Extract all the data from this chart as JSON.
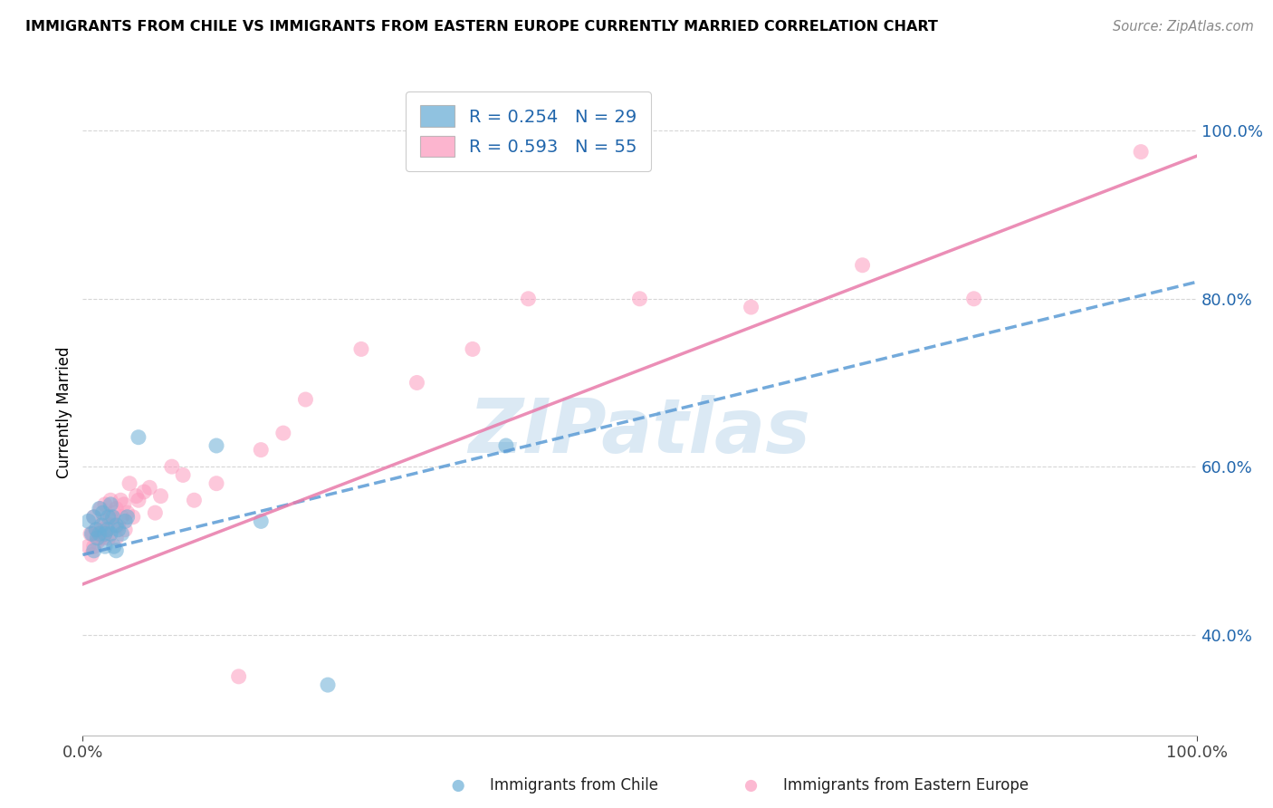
{
  "title": "IMMIGRANTS FROM CHILE VS IMMIGRANTS FROM EASTERN EUROPE CURRENTLY MARRIED CORRELATION CHART",
  "source": "Source: ZipAtlas.com",
  "ylabel": "Currently Married",
  "legend_label1": "R = 0.254   N = 29",
  "legend_label2": "R = 0.593   N = 55",
  "footer_label1": "Immigrants from Chile",
  "footer_label2": "Immigrants from Eastern Europe",
  "color_blue": "#6baed6",
  "color_pink": "#fc9cbf",
  "color_blue_line": "#5b9bd5",
  "color_pink_line": "#e87aaa",
  "color_text_blue": "#2166ac",
  "watermark_color": "#b8d4ea",
  "xlim": [
    0.0,
    1.0
  ],
  "ylim": [
    0.28,
    1.05
  ],
  "yticks": [
    0.4,
    0.6,
    0.8,
    1.0
  ],
  "ytick_labels": [
    "40.0%",
    "60.0%",
    "80.0%",
    "100.0%"
  ],
  "chile_x": [
    0.005,
    0.008,
    0.01,
    0.01,
    0.012,
    0.013,
    0.015,
    0.015,
    0.017,
    0.018,
    0.02,
    0.02,
    0.022,
    0.023,
    0.025,
    0.025,
    0.027,
    0.028,
    0.03,
    0.03,
    0.032,
    0.035,
    0.038,
    0.04,
    0.05,
    0.12,
    0.16,
    0.22,
    0.38
  ],
  "chile_y": [
    0.535,
    0.52,
    0.5,
    0.54,
    0.525,
    0.515,
    0.52,
    0.55,
    0.53,
    0.545,
    0.505,
    0.52,
    0.525,
    0.54,
    0.52,
    0.555,
    0.54,
    0.505,
    0.5,
    0.53,
    0.525,
    0.52,
    0.535,
    0.54,
    0.635,
    0.625,
    0.535,
    0.34,
    0.625
  ],
  "eastern_x": [
    0.005,
    0.007,
    0.008,
    0.009,
    0.01,
    0.01,
    0.012,
    0.013,
    0.014,
    0.015,
    0.016,
    0.017,
    0.018,
    0.019,
    0.02,
    0.02,
    0.022,
    0.023,
    0.025,
    0.025,
    0.027,
    0.028,
    0.03,
    0.03,
    0.032,
    0.034,
    0.035,
    0.037,
    0.038,
    0.04,
    0.042,
    0.045,
    0.048,
    0.05,
    0.055,
    0.06,
    0.065,
    0.07,
    0.08,
    0.09,
    0.1,
    0.12,
    0.14,
    0.16,
    0.18,
    0.2,
    0.25,
    0.3,
    0.35,
    0.4,
    0.5,
    0.6,
    0.7,
    0.8,
    0.95
  ],
  "eastern_y": [
    0.505,
    0.52,
    0.495,
    0.52,
    0.505,
    0.54,
    0.525,
    0.51,
    0.52,
    0.515,
    0.55,
    0.525,
    0.515,
    0.535,
    0.52,
    0.555,
    0.53,
    0.515,
    0.54,
    0.56,
    0.53,
    0.545,
    0.515,
    0.55,
    0.53,
    0.56,
    0.54,
    0.555,
    0.525,
    0.545,
    0.58,
    0.54,
    0.565,
    0.56,
    0.57,
    0.575,
    0.545,
    0.565,
    0.6,
    0.59,
    0.56,
    0.58,
    0.35,
    0.62,
    0.64,
    0.68,
    0.74,
    0.7,
    0.74,
    0.8,
    0.8,
    0.79,
    0.84,
    0.8,
    0.975
  ],
  "blue_line_x0": 0.0,
  "blue_line_y0": 0.495,
  "blue_line_x1": 1.0,
  "blue_line_y1": 0.82,
  "pink_line_x0": 0.0,
  "pink_line_y0": 0.46,
  "pink_line_x1": 1.0,
  "pink_line_y1": 0.97
}
